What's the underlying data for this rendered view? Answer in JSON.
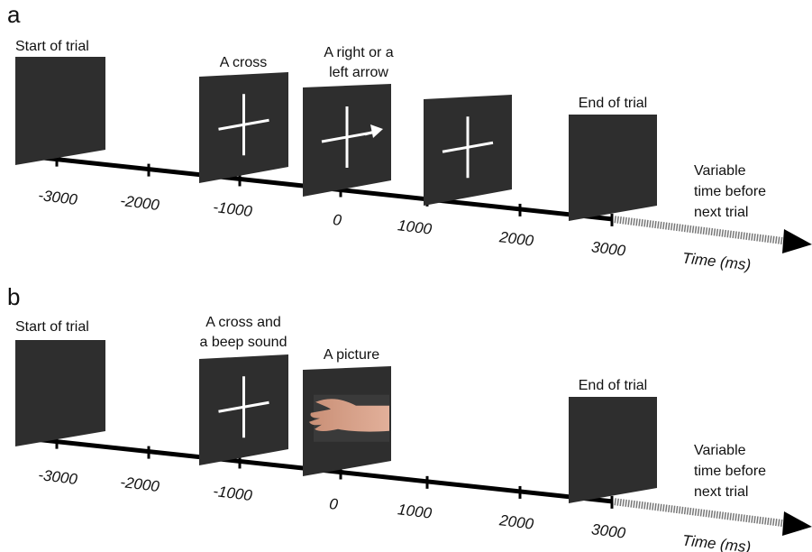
{
  "panels": [
    {
      "label": "a",
      "captions": [
        {
          "lines": [
            "Start of trial"
          ]
        },
        {
          "lines": [
            "A cross"
          ]
        },
        {
          "lines": [
            "A right or a",
            "left arrow"
          ]
        },
        {
          "lines": [
            "End of trial"
          ]
        }
      ],
      "ticks": [
        -3000,
        -2000,
        -1000,
        0,
        1000,
        2000,
        3000
      ],
      "axis_label": "Time (ms)",
      "note": [
        "Variable",
        "time before",
        "next trial"
      ]
    },
    {
      "label": "b",
      "captions": [
        {
          "lines": [
            "Start of trial"
          ]
        },
        {
          "lines": [
            "A cross and",
            "a beep sound"
          ]
        },
        {
          "lines": [
            "A picture"
          ]
        },
        {
          "lines": [
            "End of trial"
          ]
        }
      ],
      "ticks": [
        -3000,
        -2000,
        -1000,
        0,
        1000,
        2000,
        3000
      ],
      "axis_label": "Time (ms)",
      "note": [
        "Variable",
        "time before",
        "next trial"
      ]
    }
  ]
}
